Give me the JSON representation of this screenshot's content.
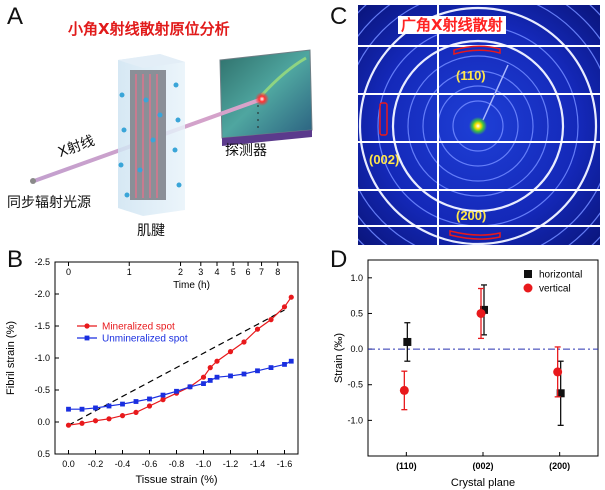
{
  "panels": {
    "a": {
      "letter": "A",
      "title": "小角X射线散射原位分析",
      "xray_label": "X射线",
      "source_label": "同步辐射光源",
      "tendon_label": "肌腱",
      "detector_label": "探测器"
    },
    "c": {
      "letter": "C",
      "title": "广角X射线散射",
      "peaks": [
        "(110)",
        "(002)",
        "(200)"
      ]
    },
    "b": {
      "letter": "B"
    },
    "d": {
      "letter": "D"
    }
  },
  "chart_data": [
    {
      "id": "B",
      "type": "scatter",
      "title": "",
      "xlabel": "Tissue strain (%)",
      "ylabel": "Fibril strain (%)",
      "top_xlabel": "Time (h)",
      "xlim": [
        0.1,
        -1.7
      ],
      "ylim": [
        0.5,
        -2.5
      ],
      "xticks": [
        0.0,
        -0.2,
        -0.4,
        -0.6,
        -0.8,
        -1.0,
        -1.2,
        -1.4,
        -1.6
      ],
      "xtick_labels": [
        "0.0",
        "-0.2",
        "-0.4",
        "-0.6",
        "-0.8",
        "-1.0",
        "-1.2",
        "-1.4",
        "-1.6"
      ],
      "yticks": [
        0.5,
        0.0,
        -0.5,
        -1.0,
        -1.5,
        -2.0,
        -2.5
      ],
      "ytick_labels": [
        "0.5",
        "0.0",
        "-0.5",
        "-1.0",
        "-1.5",
        "-2.0",
        "-2.5"
      ],
      "top_ticks": [
        0,
        1,
        2,
        3,
        4,
        5,
        6,
        7,
        8
      ],
      "top_tick_positions": [
        0.0,
        -0.45,
        -0.83,
        -0.98,
        -1.1,
        -1.22,
        -1.33,
        -1.43,
        -1.55
      ],
      "legend": "upper-left",
      "series": [
        {
          "name": "Mineralized spot",
          "color": "#e8191c",
          "marker": "circle",
          "x": [
            0.0,
            -0.1,
            -0.2,
            -0.3,
            -0.4,
            -0.5,
            -0.6,
            -0.7,
            -0.8,
            -0.9,
            -1.0,
            -1.05,
            -1.1,
            -1.2,
            -1.3,
            -1.4,
            -1.5,
            -1.6,
            -1.65
          ],
          "y": [
            0.05,
            0.02,
            -0.02,
            -0.05,
            -0.1,
            -0.15,
            -0.25,
            -0.35,
            -0.45,
            -0.55,
            -0.7,
            -0.85,
            -0.95,
            -1.1,
            -1.25,
            -1.45,
            -1.6,
            -1.8,
            -1.95
          ]
        },
        {
          "name": "Unmineralized spot",
          "color": "#1a2fe0",
          "marker": "square",
          "x": [
            0.0,
            -0.1,
            -0.2,
            -0.3,
            -0.4,
            -0.5,
            -0.6,
            -0.7,
            -0.8,
            -0.9,
            -1.0,
            -1.05,
            -1.1,
            -1.2,
            -1.3,
            -1.4,
            -1.5,
            -1.6,
            -1.65
          ],
          "y": [
            -0.2,
            -0.2,
            -0.22,
            -0.25,
            -0.28,
            -0.32,
            -0.36,
            -0.42,
            -0.48,
            -0.55,
            -0.6,
            -0.65,
            -0.7,
            -0.72,
            -0.75,
            -0.8,
            -0.85,
            -0.9,
            -0.95
          ]
        }
      ],
      "trend_line": {
        "x": [
          0.0,
          -1.6
        ],
        "y": [
          0.05,
          -1.75
        ]
      }
    },
    {
      "id": "D",
      "type": "scatter",
      "title": "",
      "xlabel": "Crystal plane",
      "ylabel": "Strain (‰)",
      "categories": [
        "(110)",
        "(002)",
        "(200)"
      ],
      "ylim": [
        -1.5,
        1.25
      ],
      "yticks": [
        1.0,
        0.5,
        0.0,
        -0.5,
        -1.0
      ],
      "ytick_labels": [
        "1.0",
        "0.5",
        "0.0",
        "-0.5",
        "-1.0"
      ],
      "reference_line": 0,
      "legend": "upper-right",
      "series": [
        {
          "name": "horizontal",
          "color": "#111111",
          "marker": "square",
          "values": [
            0.1,
            0.55,
            -0.62
          ],
          "errors": [
            0.27,
            0.35,
            0.45
          ]
        },
        {
          "name": "vertical",
          "color": "#e8191c",
          "marker": "circle",
          "values": [
            -0.58,
            0.5,
            -0.32
          ],
          "errors": [
            0.27,
            0.35,
            0.35
          ]
        }
      ]
    }
  ]
}
